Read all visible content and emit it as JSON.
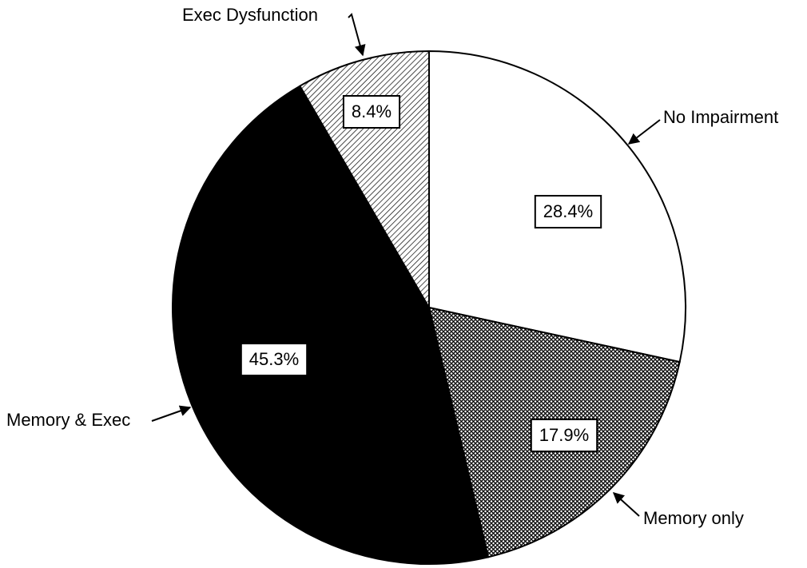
{
  "chart_data": {
    "type": "pie",
    "categories": [
      "No Impairment",
      "Memory only",
      "Memory & Exec",
      "Exec Dysfunction"
    ],
    "values": [
      28.4,
      17.9,
      45.3,
      8.4
    ],
    "value_labels": [
      "28.4%",
      "17.9%",
      "45.3%",
      "8.4%"
    ],
    "colors": [
      "#ffffff",
      "#8a8a8a",
      "#000000",
      "#d0d0d0"
    ],
    "patterns": [
      "solid",
      "crosshatch",
      "solid",
      "hatch"
    ]
  }
}
